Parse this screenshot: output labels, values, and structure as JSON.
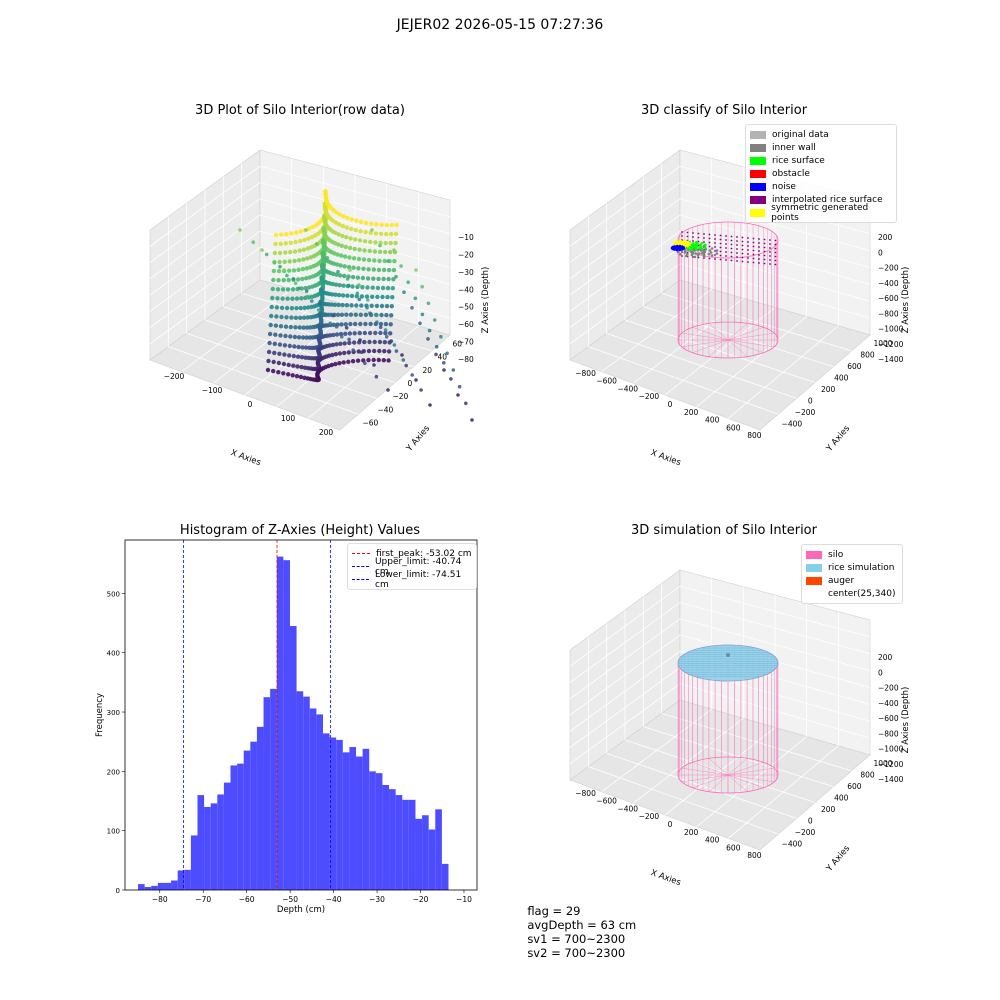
{
  "figure_title": "JEJER02 2026-05-15 07:27:36",
  "footer": {
    "flag": "flag = 29",
    "avg_depth": "avgDepth = 63 cm",
    "sv1": "sv1 = 700~2300",
    "sv2": "sv2 = 700~2300"
  },
  "chart_data": [
    {
      "id": "raw",
      "type": "scatter",
      "title": "3D Plot of Silo Interior(row data)",
      "xlabel": "X Axies",
      "ylabel": "Y Axies",
      "zlabel": "Z Axies (Depth)",
      "x_ticks": [
        "−200",
        "−100",
        "0",
        "100",
        "200"
      ],
      "y_ticks": [
        "−60",
        "−40",
        "−20",
        "0",
        "20",
        "40",
        "60"
      ],
      "z_ticks": [
        "−10",
        "−20",
        "−30",
        "−40",
        "−50",
        "−60",
        "−70",
        "−80"
      ],
      "colormap": [
        "#440154",
        "#3b528b",
        "#21918c",
        "#5ec962",
        "#fde725"
      ]
    },
    {
      "id": "classify",
      "type": "scatter",
      "title": "3D classify of Silo Interior",
      "xlabel": "X Axies",
      "ylabel": "Y Axies",
      "zlabel": "Z Axies (Depth)",
      "x_ticks": [
        "−800",
        "−600",
        "−400",
        "−200",
        "0",
        "200",
        "400",
        "600",
        "800"
      ],
      "y_ticks": [
        "−400",
        "−200",
        "0",
        "200",
        "400",
        "600",
        "800",
        "1000"
      ],
      "z_ticks": [
        "200",
        "0",
        "−200",
        "−400",
        "−600",
        "−800",
        "−1000",
        "−1200",
        "−1400"
      ],
      "legend": [
        {
          "label": "original data",
          "color": "#b3b3b3"
        },
        {
          "label": "inner wall",
          "color": "#808080"
        },
        {
          "label": "rice surface",
          "color": "#00ff00"
        },
        {
          "label": "obstacle",
          "color": "#ff0000"
        },
        {
          "label": "noise",
          "color": "#0000ff"
        },
        {
          "label": "interpolated rice surface",
          "color": "#800080"
        },
        {
          "label": "symmetric generated points",
          "color": "#ffff00"
        }
      ]
    },
    {
      "id": "histogram",
      "type": "bar",
      "title": "Histogram of Z-Axies (Height) Values",
      "xlabel": "Depth (cm)",
      "ylabel": "Frequency",
      "xlim": [
        -88,
        -7
      ],
      "ylim": [
        0,
        590
      ],
      "x_ticks": [
        -80,
        -70,
        -60,
        -50,
        -40,
        -30,
        -20,
        -10
      ],
      "y_ticks": [
        0,
        100,
        200,
        300,
        400,
        500
      ],
      "bar_color": "#4d4dff",
      "bin_start": -85,
      "bin_width": 1.52,
      "values": [
        10,
        5,
        7,
        12,
        12,
        16,
        33,
        34,
        92,
        160,
        140,
        146,
        161,
        181,
        210,
        213,
        235,
        250,
        275,
        325,
        339,
        562,
        556,
        445,
        335,
        326,
        306,
        296,
        264,
        257,
        253,
        232,
        241,
        225,
        238,
        200,
        197,
        177,
        170,
        160,
        152,
        152,
        120,
        126,
        102,
        136,
        44
      ],
      "vlines": [
        {
          "label": "first_peak: -53.02 cm",
          "x": -53.02,
          "color": "#ff0000"
        },
        {
          "label": "Upper_limit: -40.74 cm",
          "x": -40.74,
          "color": "#0000ff"
        },
        {
          "label": "Lower_limit: -74.51 cm",
          "x": -74.51,
          "color": "#0000ff"
        }
      ]
    },
    {
      "id": "simulation",
      "type": "scatter",
      "title": "3D simulation of Silo Interior",
      "xlabel": "X Axies",
      "ylabel": "Y Axies",
      "zlabel": "Z Axies (Depth)",
      "x_ticks": [
        "−800",
        "−600",
        "−400",
        "−200",
        "0",
        "200",
        "400",
        "600",
        "800"
      ],
      "y_ticks": [
        "−400",
        "−200",
        "0",
        "200",
        "400",
        "600",
        "800",
        "1000"
      ],
      "z_ticks": [
        "200",
        "0",
        "−200",
        "−400",
        "−600",
        "−800",
        "−1000",
        "−1200",
        "−1400"
      ],
      "legend": [
        {
          "label": "silo",
          "color": "#ff69b4"
        },
        {
          "label": "rice simulation",
          "color": "#87ceeb"
        },
        {
          "label": "auger",
          "color": "#ff4500"
        },
        {
          "label": "center(25,340)",
          "color": ""
        }
      ]
    }
  ]
}
